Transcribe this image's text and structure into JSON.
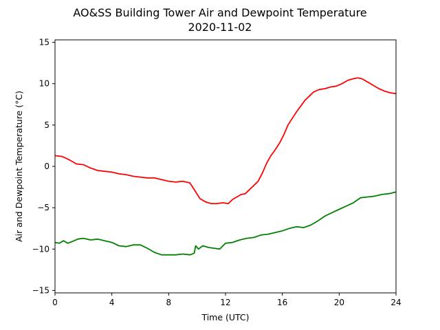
{
  "chart_data": {
    "type": "line",
    "title": "AO&SS Building Tower Air and Dewpoint Temperature",
    "subtitle": "2020-11-02",
    "xlabel": "Time (UTC)",
    "ylabel": "Air and Dewpoint Temperature (°C)",
    "xlim": [
      0,
      24
    ],
    "ylim": [
      -15.3,
      15.3
    ],
    "xticks": [
      0,
      4,
      8,
      12,
      16,
      20,
      24
    ],
    "yticks": [
      -15,
      -10,
      -5,
      0,
      5,
      10,
      15
    ],
    "grid": false,
    "series": [
      {
        "color": "#ff0000",
        "x": [
          0,
          0.5,
          1.0,
          1.5,
          2.0,
          2.5,
          3.0,
          3.5,
          4.0,
          4.5,
          5.0,
          5.5,
          6.0,
          6.5,
          7.0,
          7.5,
          8.0,
          8.5,
          9.0,
          9.5,
          9.8,
          10.2,
          10.6,
          11.0,
          11.4,
          11.8,
          12.2,
          12.5,
          12.8,
          13.1,
          13.4,
          13.7,
          14.0,
          14.3,
          14.6,
          14.9,
          15.2,
          15.5,
          15.8,
          16.1,
          16.4,
          16.7,
          17.0,
          17.3,
          17.6,
          17.9,
          18.2,
          18.6,
          19.0,
          19.4,
          19.8,
          20.2,
          20.6,
          21.0,
          21.3,
          21.6,
          22.0,
          22.4,
          22.8,
          23.2,
          23.6,
          24.0
        ],
        "y": [
          1.3,
          1.2,
          0.8,
          0.3,
          0.2,
          -0.2,
          -0.5,
          -0.6,
          -0.7,
          -0.9,
          -1.0,
          -1.2,
          -1.3,
          -1.4,
          -1.4,
          -1.6,
          -1.8,
          -1.9,
          -1.8,
          -2.0,
          -2.8,
          -3.9,
          -4.3,
          -4.5,
          -4.5,
          -4.4,
          -4.5,
          -4.0,
          -3.7,
          -3.4,
          -3.3,
          -2.8,
          -2.3,
          -1.8,
          -0.8,
          0.4,
          1.3,
          2.0,
          2.8,
          3.8,
          5.0,
          5.8,
          6.6,
          7.3,
          8.0,
          8.5,
          9.0,
          9.3,
          9.4,
          9.6,
          9.7,
          10.0,
          10.4,
          10.6,
          10.7,
          10.6,
          10.2,
          9.8,
          9.4,
          9.1,
          8.9,
          8.8
        ]
      },
      {
        "color": "#008000",
        "x": [
          0,
          0.3,
          0.6,
          0.9,
          1.2,
          1.6,
          2.0,
          2.5,
          3.0,
          3.5,
          4.0,
          4.5,
          5.0,
          5.5,
          6.0,
          6.5,
          7.0,
          7.5,
          8.0,
          8.5,
          9.0,
          9.5,
          9.8,
          9.9,
          10.1,
          10.4,
          10.8,
          11.2,
          11.6,
          12.0,
          12.5,
          13.0,
          13.5,
          14.0,
          14.5,
          15.0,
          15.5,
          16.0,
          16.5,
          17.0,
          17.5,
          18.0,
          18.5,
          19.0,
          19.5,
          20.0,
          20.5,
          21.0,
          21.5,
          22.0,
          22.5,
          23.0,
          23.5,
          24.0
        ],
        "y": [
          -9.2,
          -9.3,
          -9.0,
          -9.3,
          -9.1,
          -8.8,
          -8.7,
          -8.9,
          -8.8,
          -9.0,
          -9.2,
          -9.6,
          -9.7,
          -9.5,
          -9.5,
          -9.9,
          -10.4,
          -10.7,
          -10.7,
          -10.7,
          -10.6,
          -10.7,
          -10.5,
          -9.6,
          -10.0,
          -9.6,
          -9.8,
          -9.9,
          -10.0,
          -9.3,
          -9.2,
          -8.9,
          -8.7,
          -8.6,
          -8.3,
          -8.2,
          -8.0,
          -7.8,
          -7.5,
          -7.3,
          -7.4,
          -7.1,
          -6.6,
          -6.0,
          -5.6,
          -5.2,
          -4.8,
          -4.4,
          -3.8,
          -3.7,
          -3.6,
          -3.4,
          -3.3,
          -3.1
        ]
      }
    ]
  }
}
